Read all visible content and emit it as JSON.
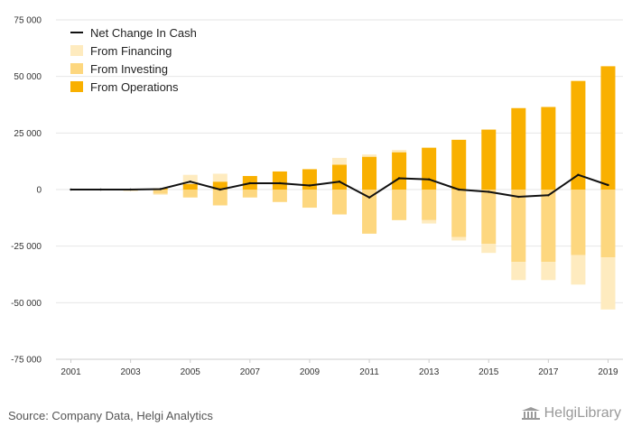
{
  "chart_data": {
    "type": "bar",
    "stacked": true,
    "categories": [
      "2001",
      "2002",
      "2003",
      "2004",
      "2005",
      "2006",
      "2007",
      "2008",
      "2009",
      "2010",
      "2011",
      "2012",
      "2013",
      "2014",
      "2015",
      "2016",
      "2017",
      "2018",
      "2019"
    ],
    "x_tick_labels": [
      "2001",
      "2003",
      "2005",
      "2007",
      "2009",
      "2011",
      "2013",
      "2015",
      "2017",
      "2019"
    ],
    "y_tick_labels": [
      "75 000",
      "50 000",
      "25 000",
      "0",
      "-25 000",
      "-50 000",
      "-75 000"
    ],
    "ylim": [
      -75000,
      75000
    ],
    "y_ticks": [
      75000,
      50000,
      25000,
      0,
      -25000,
      -50000,
      -75000
    ],
    "legend_position": "top-left",
    "grid": "horizontal",
    "series": [
      {
        "name": "From Operations",
        "kind": "bar",
        "color": "#F9B000",
        "values": [
          0,
          0,
          0,
          500,
          2500,
          3500,
          6000,
          8000,
          9000,
          11000,
          14500,
          16500,
          18500,
          22000,
          26500,
          36000,
          36500,
          48000,
          54500
        ]
      },
      {
        "name": "From Investing",
        "kind": "bar",
        "color": "#FDD77F",
        "values": [
          0,
          0,
          -500,
          -1800,
          -3500,
          -7000,
          -3500,
          -5500,
          -8000,
          -11000,
          -19500,
          -13500,
          -13500,
          -21000,
          -24000,
          -32000,
          -32000,
          -29000,
          -30000
        ]
      },
      {
        "name": "From Financing",
        "kind": "bar",
        "color": "#FEEBBF",
        "values": [
          0,
          0,
          -200,
          -500,
          4000,
          3500,
          0,
          0,
          0,
          3000,
          1000,
          1000,
          -1500,
          -1500,
          -4000,
          -8000,
          -8000,
          -13000,
          -23000
        ]
      },
      {
        "name": "Net Change In Cash",
        "kind": "line",
        "color": "#111111",
        "values": [
          0,
          0,
          0,
          200,
          3500,
          0,
          2800,
          2800,
          1800,
          3500,
          -3500,
          5000,
          4500,
          0,
          -1000,
          -3200,
          -2500,
          6500,
          2000
        ]
      }
    ]
  },
  "legend": {
    "items": [
      {
        "label": "Net Change In Cash",
        "color": "#111111",
        "kind": "line"
      },
      {
        "label": "From Financing",
        "color": "#FEEBBF",
        "kind": "bar"
      },
      {
        "label": "From Investing",
        "color": "#FDD77F",
        "kind": "bar"
      },
      {
        "label": "From Operations",
        "color": "#F9B000",
        "kind": "bar"
      }
    ]
  },
  "footer": {
    "source": "Source: Company Data, Helgi Analytics",
    "logo_text": "HelgiLibrary"
  }
}
